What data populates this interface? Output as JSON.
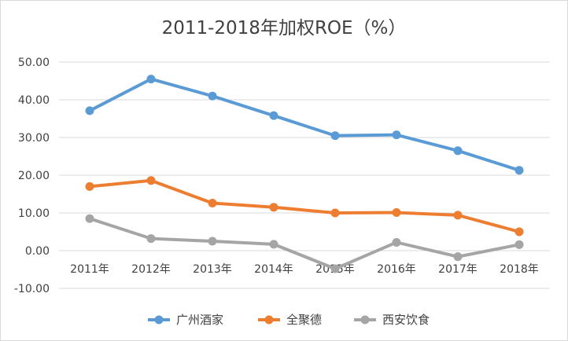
{
  "chart_data": {
    "type": "line",
    "title": "2011-2018年加权ROE（%）",
    "categories": [
      "2011年",
      "2012年",
      "2013年",
      "2014年",
      "2015年",
      "2016年",
      "2017年",
      "2018年"
    ],
    "ylim": [
      -10,
      50
    ],
    "yticks": [
      "-10.00",
      "0.00",
      "10.00",
      "20.00",
      "30.00",
      "40.00",
      "50.00"
    ],
    "xlabel": "",
    "ylabel": "",
    "grid": true,
    "legend_position": "bottom",
    "series": [
      {
        "name": "广州酒家",
        "color": "#5b9bd5",
        "values": [
          37.1,
          45.5,
          41.0,
          35.8,
          30.5,
          30.7,
          26.5,
          21.3
        ]
      },
      {
        "name": "全聚德",
        "color": "#ed7d31",
        "values": [
          17.0,
          18.6,
          12.6,
          11.5,
          10.0,
          10.1,
          9.4,
          5.0
        ]
      },
      {
        "name": "西安饮食",
        "color": "#a5a5a5",
        "values": [
          8.5,
          3.2,
          2.5,
          1.7,
          -4.8,
          2.2,
          -1.6,
          1.6
        ]
      }
    ]
  }
}
